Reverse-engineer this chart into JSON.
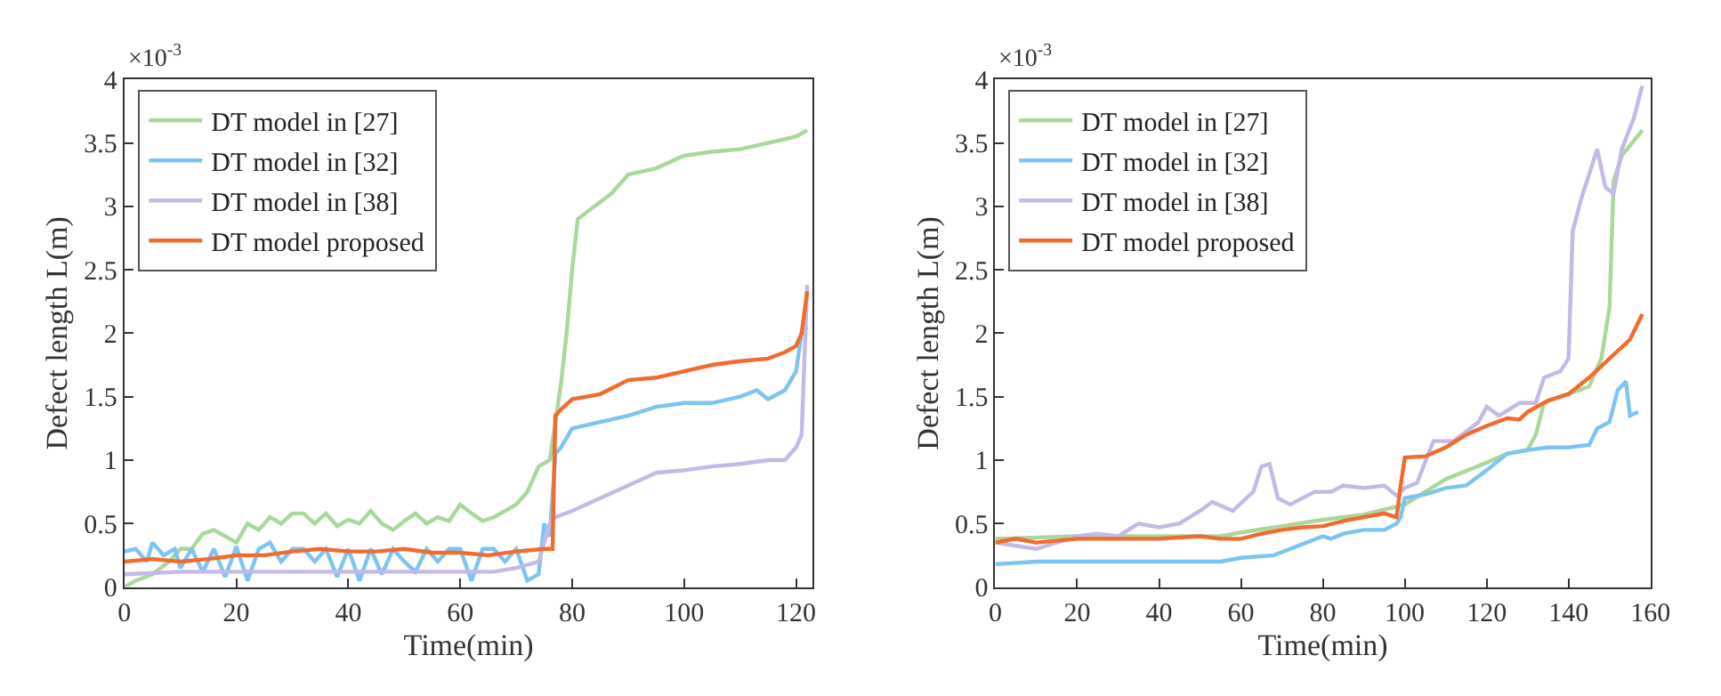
{
  "chart_data": [
    {
      "type": "line",
      "xlabel": "Time(min)",
      "ylabel": "Defect length L(m)",
      "annotations": [
        "×10$^{-3}$"
      ],
      "xlim": [
        0,
        123
      ],
      "xticks": [
        0,
        20,
        40,
        60,
        80,
        100,
        120
      ],
      "ylim": [
        0,
        4
      ],
      "yticks": [
        0,
        0.5,
        1,
        1.5,
        2,
        2.5,
        3,
        3.5,
        4
      ],
      "legend": "top left",
      "series": [
        {
          "name": "DT model in [27]",
          "color": "#a8d89a",
          "x": [
            0,
            2,
            5,
            8,
            10,
            12,
            14,
            16,
            18,
            20,
            22,
            24,
            26,
            28,
            30,
            32,
            34,
            36,
            38,
            40,
            42,
            44,
            46,
            48,
            50,
            52,
            54,
            56,
            58,
            60,
            62,
            64,
            66,
            68,
            70,
            72,
            74,
            76,
            77,
            78,
            79,
            80,
            81,
            84,
            87,
            90,
            95,
            100,
            105,
            110,
            115,
            120,
            122
          ],
          "values": [
            0,
            0.05,
            0.1,
            0.2,
            0.3,
            0.3,
            0.42,
            0.45,
            0.4,
            0.35,
            0.5,
            0.45,
            0.55,
            0.5,
            0.58,
            0.58,
            0.5,
            0.58,
            0.48,
            0.53,
            0.5,
            0.6,
            0.5,
            0.45,
            0.52,
            0.58,
            0.5,
            0.55,
            0.52,
            0.65,
            0.58,
            0.52,
            0.55,
            0.6,
            0.65,
            0.75,
            0.95,
            1.0,
            1.3,
            1.6,
            2.0,
            2.5,
            2.9,
            3.0,
            3.1,
            3.25,
            3.3,
            3.4,
            3.43,
            3.45,
            3.5,
            3.55,
            3.6
          ]
        },
        {
          "name": "DT model in [32]",
          "color": "#7cc4f2",
          "x": [
            0,
            2,
            4,
            5,
            7,
            9,
            10,
            12,
            14,
            16,
            18,
            20,
            22,
            24,
            26,
            28,
            30,
            32,
            34,
            36,
            38,
            40,
            42,
            44,
            46,
            48,
            50,
            52,
            54,
            56,
            58,
            60,
            62,
            64,
            66,
            68,
            70,
            72,
            74,
            75,
            76,
            77,
            78,
            80,
            85,
            90,
            95,
            100,
            105,
            110,
            113,
            115,
            118,
            120,
            121,
            122
          ],
          "values": [
            0.28,
            0.3,
            0.2,
            0.35,
            0.25,
            0.3,
            0.15,
            0.3,
            0.12,
            0.3,
            0.08,
            0.32,
            0.05,
            0.3,
            0.35,
            0.2,
            0.3,
            0.3,
            0.2,
            0.3,
            0.08,
            0.3,
            0.05,
            0.3,
            0.1,
            0.3,
            0.2,
            0.12,
            0.3,
            0.2,
            0.3,
            0.3,
            0.05,
            0.3,
            0.3,
            0.2,
            0.3,
            0.05,
            0.1,
            0.5,
            0.4,
            1.05,
            1.1,
            1.25,
            1.3,
            1.35,
            1.42,
            1.45,
            1.45,
            1.5,
            1.55,
            1.48,
            1.55,
            1.7,
            2.0,
            2.05
          ]
        },
        {
          "name": "DT model in [38]",
          "color": "#c3b8e8",
          "x": [
            0,
            10,
            20,
            30,
            40,
            50,
            60,
            66,
            70,
            74,
            76,
            77,
            80,
            85,
            90,
            95,
            100,
            105,
            110,
            115,
            118,
            120,
            121,
            122
          ],
          "values": [
            0.1,
            0.12,
            0.12,
            0.12,
            0.12,
            0.12,
            0.12,
            0.12,
            0.15,
            0.2,
            0.5,
            0.55,
            0.6,
            0.7,
            0.8,
            0.9,
            0.92,
            0.95,
            0.97,
            1.0,
            1.0,
            1.1,
            1.2,
            2.38
          ]
        },
        {
          "name": "DT model proposed",
          "color": "#f26b2c",
          "x": [
            0,
            5,
            10,
            15,
            20,
            25,
            30,
            35,
            40,
            45,
            50,
            55,
            60,
            65,
            70,
            75,
            76.5,
            77,
            78,
            80,
            85,
            90,
            95,
            100,
            105,
            110,
            115,
            118,
            120,
            121,
            122
          ],
          "values": [
            0.2,
            0.22,
            0.2,
            0.22,
            0.25,
            0.25,
            0.28,
            0.3,
            0.28,
            0.28,
            0.3,
            0.27,
            0.27,
            0.25,
            0.28,
            0.3,
            0.3,
            1.35,
            1.4,
            1.48,
            1.52,
            1.63,
            1.65,
            1.7,
            1.75,
            1.78,
            1.8,
            1.85,
            1.9,
            2.0,
            2.33
          ]
        }
      ]
    },
    {
      "type": "line",
      "xlabel": "Time(min)",
      "ylabel": "Defect length L(m)",
      "annotations": [
        "×10$^{-3}$"
      ],
      "xlim": [
        0,
        160
      ],
      "xticks": [
        0,
        20,
        40,
        60,
        80,
        100,
        120,
        140,
        160
      ],
      "ylim": [
        0,
        4
      ],
      "yticks": [
        0,
        0.5,
        1,
        1.5,
        2,
        2.5,
        3,
        3.5,
        4
      ],
      "legend": "top left",
      "series": [
        {
          "name": "DT model in [27]",
          "color": "#a8d89a",
          "x": [
            0,
            20,
            40,
            55,
            60,
            70,
            80,
            90,
            100,
            110,
            120,
            125,
            130,
            132,
            134,
            138,
            145,
            148,
            150,
            151,
            153,
            158
          ],
          "values": [
            0.38,
            0.4,
            0.4,
            0.4,
            0.43,
            0.48,
            0.53,
            0.57,
            0.65,
            0.85,
            0.98,
            1.05,
            1.08,
            1.2,
            1.45,
            1.5,
            1.58,
            1.8,
            2.2,
            3.2,
            3.4,
            3.6
          ]
        },
        {
          "name": "DT model in [32]",
          "color": "#7cc4f2",
          "x": [
            0,
            10,
            20,
            40,
            55,
            60,
            68,
            72,
            76,
            80,
            82,
            85,
            90,
            95,
            98,
            99,
            100,
            105,
            110,
            115,
            120,
            125,
            130,
            135,
            140,
            145,
            147,
            150,
            152,
            154,
            155,
            157
          ],
          "values": [
            0.18,
            0.2,
            0.2,
            0.2,
            0.2,
            0.23,
            0.25,
            0.3,
            0.35,
            0.4,
            0.38,
            0.42,
            0.45,
            0.45,
            0.5,
            0.55,
            0.7,
            0.73,
            0.78,
            0.8,
            0.92,
            1.05,
            1.08,
            1.1,
            1.1,
            1.12,
            1.25,
            1.3,
            1.55,
            1.62,
            1.35,
            1.38
          ]
        },
        {
          "name": "DT model in [38]",
          "color": "#c3b8e8",
          "x": [
            0,
            10,
            20,
            25,
            30,
            35,
            40,
            45,
            50,
            53,
            58,
            63,
            65,
            67,
            69,
            72,
            78,
            82,
            85,
            90,
            95,
            98,
            100,
            103,
            107,
            112,
            118,
            120,
            123,
            128,
            132,
            134,
            138,
            140,
            141,
            143,
            147,
            149,
            151,
            153,
            156,
            158
          ],
          "values": [
            0.35,
            0.3,
            0.4,
            0.42,
            0.4,
            0.5,
            0.47,
            0.5,
            0.6,
            0.67,
            0.6,
            0.75,
            0.95,
            0.97,
            0.7,
            0.65,
            0.75,
            0.75,
            0.8,
            0.78,
            0.8,
            0.72,
            0.78,
            0.82,
            1.15,
            1.15,
            1.3,
            1.42,
            1.35,
            1.45,
            1.45,
            1.65,
            1.7,
            1.8,
            2.8,
            3.05,
            3.45,
            3.15,
            3.1,
            3.45,
            3.7,
            3.95
          ]
        },
        {
          "name": "DT model proposed",
          "color": "#f26b2c",
          "x": [
            0,
            5,
            10,
            20,
            30,
            40,
            50,
            55,
            60,
            65,
            70,
            75,
            80,
            85,
            90,
            95,
            98,
            99,
            100,
            105,
            110,
            115,
            120,
            125,
            128,
            130,
            135,
            140,
            145,
            150,
            155,
            158
          ],
          "values": [
            0.35,
            0.38,
            0.35,
            0.38,
            0.38,
            0.38,
            0.4,
            0.38,
            0.38,
            0.42,
            0.45,
            0.47,
            0.48,
            0.52,
            0.55,
            0.58,
            0.55,
            0.8,
            1.02,
            1.03,
            1.1,
            1.2,
            1.27,
            1.33,
            1.32,
            1.38,
            1.47,
            1.52,
            1.65,
            1.8,
            1.95,
            2.15
          ]
        }
      ]
    }
  ]
}
